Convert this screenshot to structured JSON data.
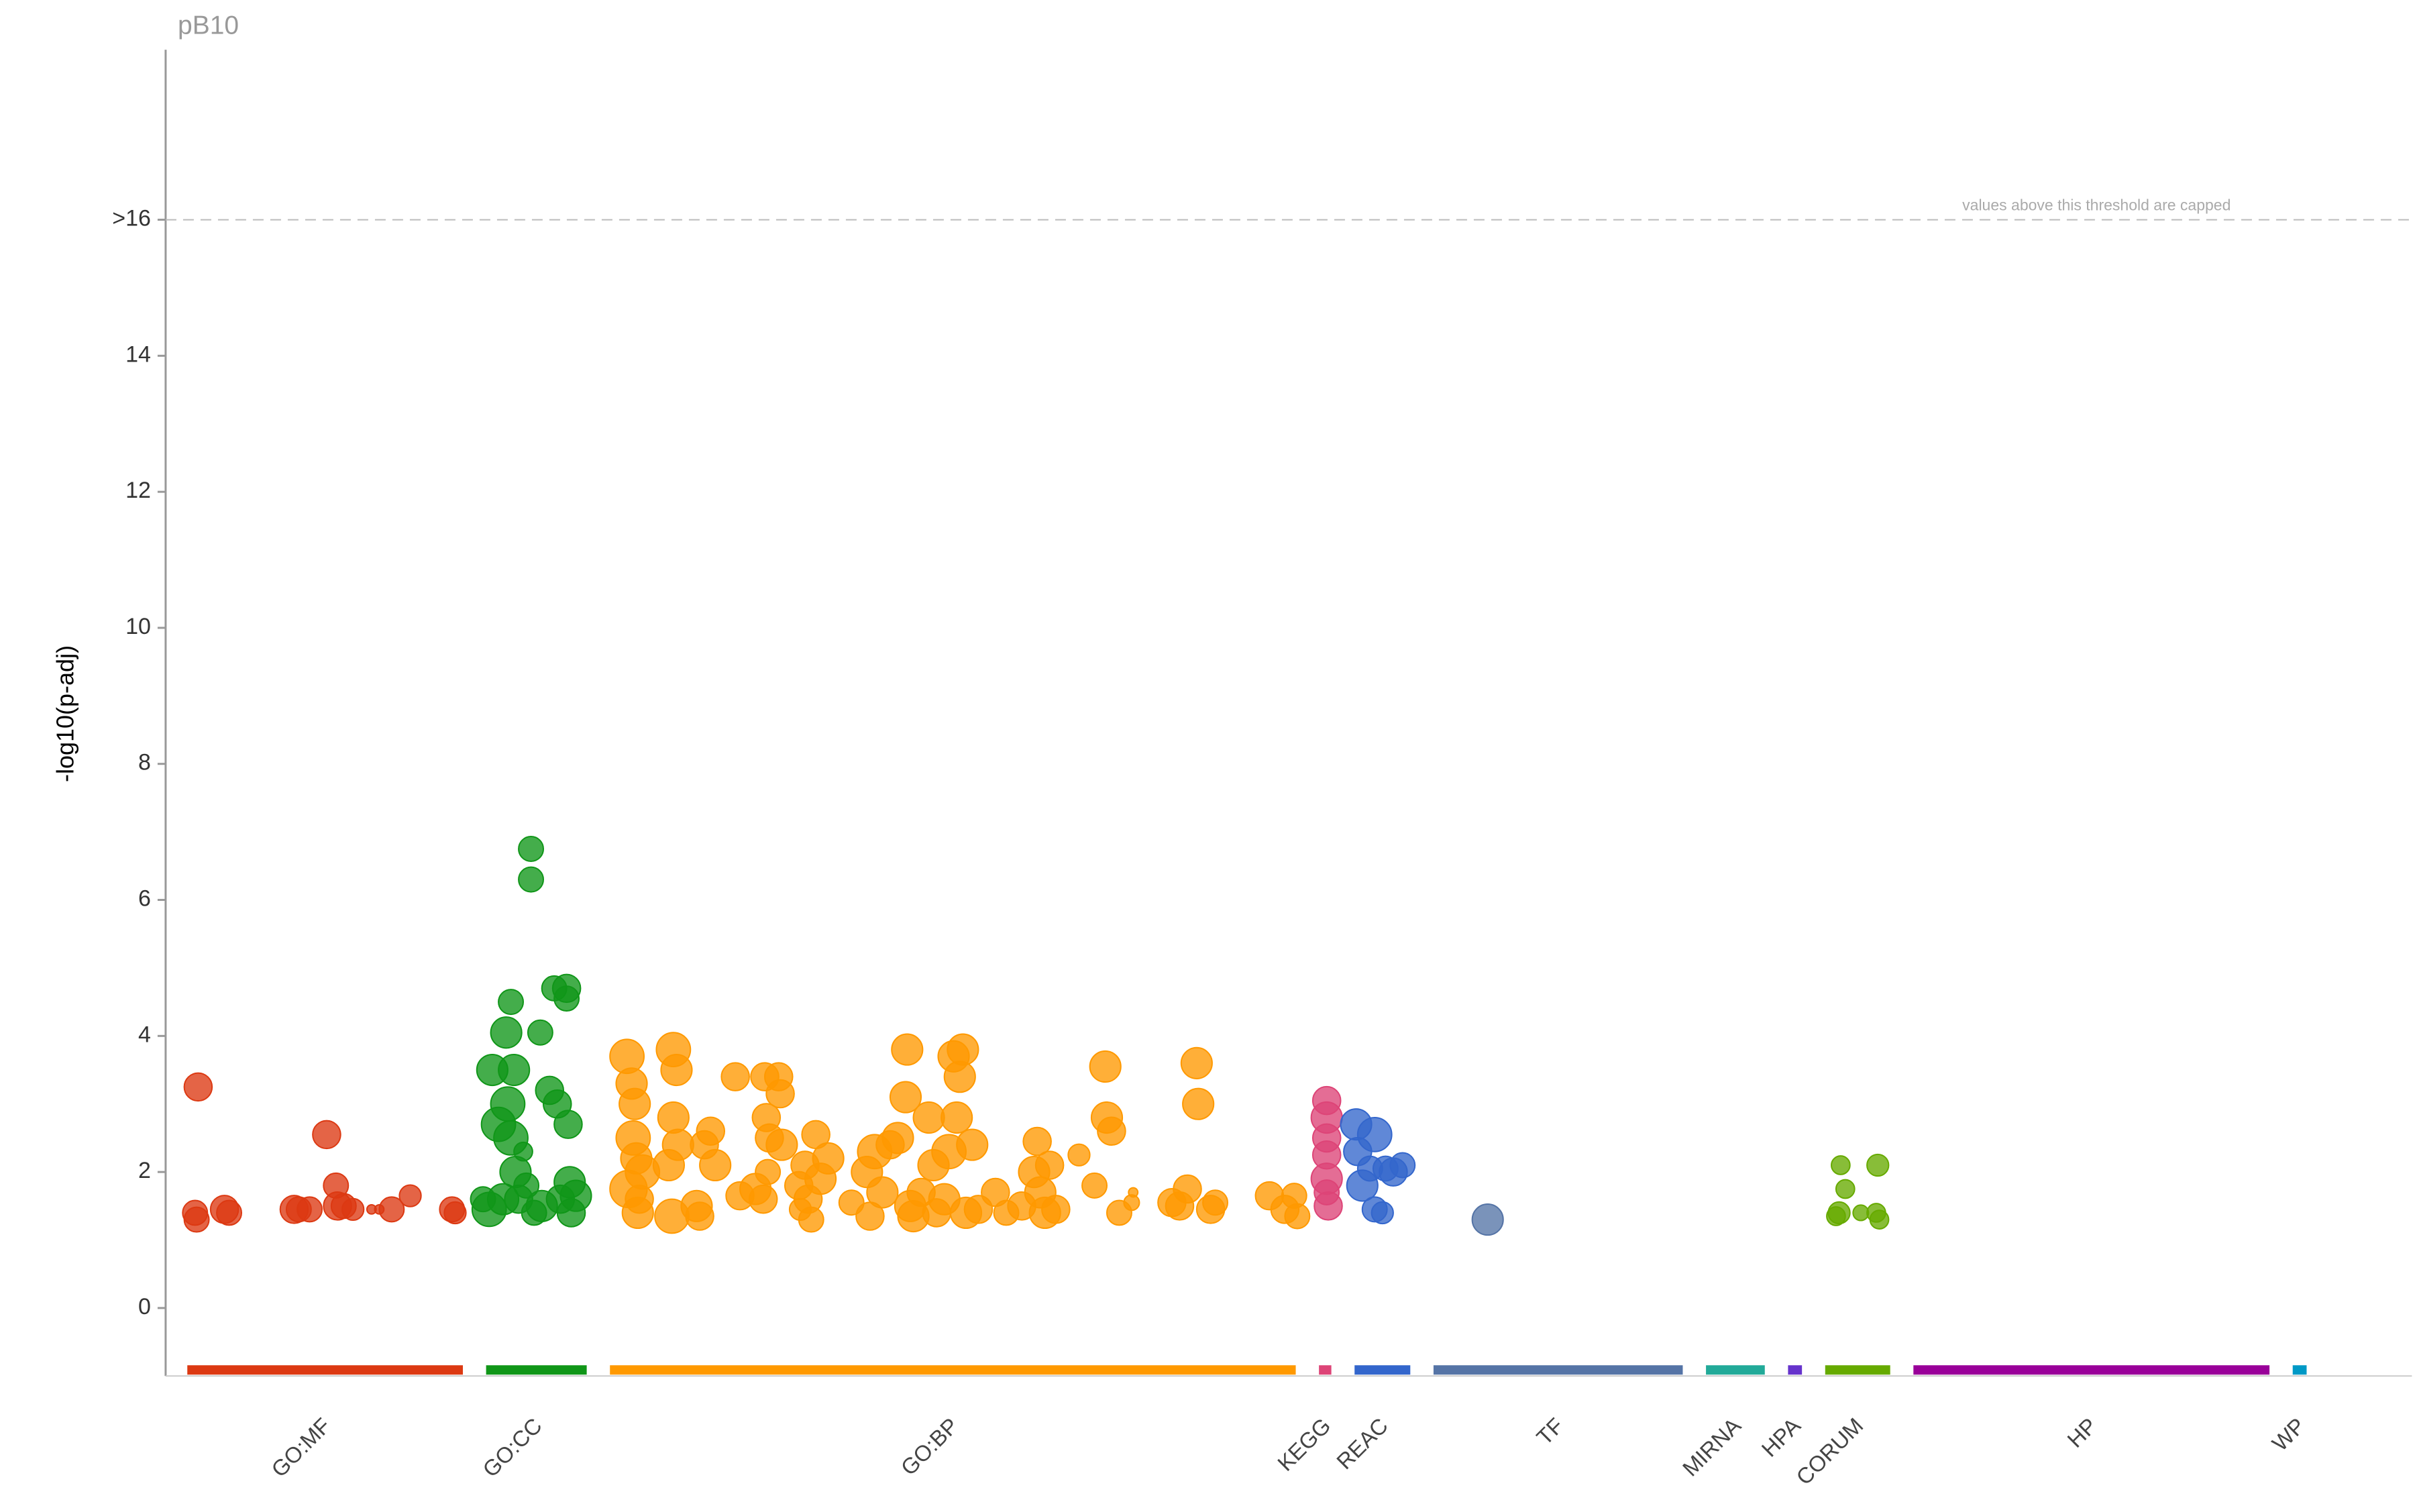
{
  "chart_data": {
    "type": "scatter",
    "title": "pB10",
    "y_label": "-log10(p-adj)",
    "annotation": "values above this threshold are capped",
    "threshold": 16,
    "ylim": [
      -1,
      18.5
    ],
    "yticks": [
      0,
      2,
      4,
      6,
      8,
      10,
      12,
      14,
      {
        "value": 16,
        "label": ">16"
      }
    ],
    "xlim": [
      107,
      1558
    ],
    "grid": false,
    "series": [
      {
        "name": "GO:MF",
        "color": "#dc3912",
        "start": 121,
        "end": 299,
        "x": [
          126,
          127,
          128,
          145,
          148,
          190,
          193,
          200,
          211,
          217,
          218,
          222,
          228,
          240,
          245,
          253,
          265,
          292,
          294
        ],
        "values": [
          1.4,
          1.3,
          3.25,
          1.45,
          1.4,
          1.45,
          1.45,
          1.45,
          2.55,
          1.8,
          1.5,
          1.5,
          1.45,
          1.45,
          1.45,
          1.45,
          1.65,
          1.45,
          1.4
        ],
        "sizes": [
          8,
          8,
          9,
          9,
          8,
          9,
          8,
          8,
          9,
          8,
          9,
          8,
          7,
          3,
          3,
          8,
          7,
          8,
          7
        ]
      },
      {
        "name": "GO:CC",
        "color": "#109618",
        "start": 314,
        "end": 379,
        "x": [
          316,
          318,
          322,
          325,
          327,
          328,
          330,
          330,
          332,
          333,
          335,
          338,
          343,
          343,
          345,
          349,
          350,
          355,
          358,
          360,
          362,
          366,
          366,
          367,
          368,
          369,
          372,
          340,
          312
        ],
        "values": [
          1.45,
          3.5,
          2.7,
          1.6,
          4.05,
          3.0,
          4.5,
          2.5,
          3.5,
          2.0,
          1.6,
          2.3,
          6.75,
          6.3,
          1.4,
          4.05,
          1.5,
          3.2,
          4.7,
          3.0,
          1.6,
          4.7,
          4.55,
          2.7,
          1.85,
          1.4,
          1.65,
          1.8,
          1.6
        ],
        "sizes": [
          11,
          10,
          11,
          10,
          10,
          11,
          8,
          11,
          10,
          10,
          9,
          6,
          8,
          8,
          8,
          8,
          10,
          9,
          8,
          9,
          9,
          9,
          8,
          9,
          10,
          9,
          10,
          8,
          8
        ]
      },
      {
        "name": "GO:BP",
        "color": "#ff9900",
        "start": 394,
        "end": 837,
        "x": [
          405,
          406,
          408,
          409,
          410,
          411,
          412,
          413,
          415,
          435,
          437,
          435,
          432,
          434,
          438,
          450,
          452,
          455,
          459,
          462,
          475,
          478,
          488,
          493,
          494,
          495,
          496,
          497,
          503,
          504,
          505,
          516,
          517,
          520,
          522,
          524,
          527,
          530,
          535,
          550,
          560,
          562,
          565,
          570,
          575,
          580,
          585,
          586,
          588,
          590,
          595,
          600,
          603,
          605,
          610,
          613,
          616,
          618,
          620,
          622,
          624,
          628,
          632,
          643,
          650,
          660,
          668,
          670,
          672,
          675,
          678,
          682,
          697,
          707,
          714,
          715,
          718,
          723,
          731,
          732,
          757,
          762,
          767,
          773,
          774,
          782,
          785,
          820,
          830,
          836,
          838
        ],
        "values": [
          3.7,
          1.75,
          3.3,
          2.5,
          3.0,
          2.2,
          1.4,
          1.6,
          2.0,
          3.8,
          3.5,
          2.8,
          2.1,
          1.35,
          2.4,
          1.5,
          1.35,
          2.4,
          2.6,
          2.1,
          3.4,
          1.65,
          1.75,
          1.6,
          3.4,
          2.8,
          2.0,
          2.5,
          3.4,
          3.15,
          2.4,
          1.8,
          1.45,
          2.1,
          1.6,
          1.3,
          2.55,
          1.9,
          2.2,
          1.55,
          2.0,
          1.35,
          2.3,
          1.7,
          2.4,
          2.5,
          3.1,
          3.8,
          1.5,
          1.35,
          1.7,
          2.8,
          2.1,
          1.4,
          1.6,
          2.3,
          3.7,
          2.8,
          3.4,
          3.8,
          1.4,
          2.4,
          1.45,
          1.7,
          1.4,
          1.5,
          2.0,
          2.45,
          1.7,
          1.4,
          2.1,
          1.45,
          2.25,
          1.8,
          3.55,
          2.8,
          2.6,
          1.4,
          1.55,
          1.7,
          1.55,
          1.5,
          1.75,
          3.6,
          3.0,
          1.45,
          1.55,
          1.65,
          1.45,
          1.65,
          1.35
        ],
        "sizes": [
          11,
          12,
          10,
          11,
          10,
          10,
          10,
          9,
          11,
          11,
          10,
          10,
          10,
          11,
          10,
          10,
          9,
          9,
          9,
          10,
          9,
          9,
          10,
          9,
          9,
          9,
          8,
          9,
          9,
          9,
          10,
          9,
          7,
          9,
          9,
          8,
          9,
          10,
          10,
          8,
          10,
          9,
          11,
          10,
          9,
          10,
          10,
          10,
          10,
          10,
          9,
          10,
          10,
          9,
          10,
          11,
          10,
          10,
          10,
          10,
          10,
          10,
          9,
          9,
          8,
          9,
          10,
          9,
          10,
          10,
          9,
          9,
          7,
          8,
          10,
          10,
          9,
          8,
          5,
          3,
          9,
          9,
          9,
          10,
          10,
          9,
          8,
          9,
          9,
          8,
          8
        ]
      },
      {
        "name": "KEGG",
        "color": "#dd4477",
        "start": 852,
        "end": 860,
        "x": [
          857,
          857,
          857,
          857,
          857,
          858,
          857
        ],
        "values": [
          3.05,
          2.8,
          2.5,
          2.25,
          1.9,
          1.5,
          1.7
        ],
        "sizes": [
          9,
          10,
          9,
          9,
          10,
          9,
          8
        ]
      },
      {
        "name": "REAC",
        "color": "#3366cc",
        "start": 875,
        "end": 911,
        "x": [
          876,
          877,
          880,
          888,
          888,
          893,
          895,
          900,
          906,
          885
        ],
        "values": [
          2.7,
          2.3,
          1.8,
          2.55,
          1.45,
          1.4,
          2.05,
          2.0,
          2.1,
          2.05
        ],
        "sizes": [
          10,
          9,
          10,
          11,
          8,
          7,
          8,
          9,
          8,
          8
        ]
      },
      {
        "name": "TF",
        "color": "#5574a6",
        "start": 926,
        "end": 1087,
        "x": [
          961
        ],
        "values": [
          1.3
        ],
        "sizes": [
          10
        ]
      },
      {
        "name": "MIRNA",
        "color": "#22aa99",
        "start": 1102,
        "end": 1140,
        "x": [],
        "values": [],
        "sizes": []
      },
      {
        "name": "HPA",
        "color": "#6633cc",
        "start": 1155,
        "end": 1164,
        "x": [],
        "values": [],
        "sizes": []
      },
      {
        "name": "CORUM",
        "color": "#66aa00",
        "start": 1179,
        "end": 1221,
        "x": [
          1189,
          1213,
          1192,
          1188,
          1186,
          1202,
          1212,
          1214
        ],
        "values": [
          2.1,
          2.1,
          1.75,
          1.4,
          1.35,
          1.4,
          1.4,
          1.3
        ],
        "sizes": [
          6,
          7,
          6,
          7,
          6,
          5,
          6,
          6
        ]
      },
      {
        "name": "HP",
        "color": "#990099",
        "start": 1236,
        "end": 1466,
        "x": [],
        "values": [],
        "sizes": []
      },
      {
        "name": "WP",
        "color": "#0099c6",
        "start": 1481,
        "end": 1490,
        "x": [],
        "values": [],
        "sizes": []
      }
    ]
  }
}
